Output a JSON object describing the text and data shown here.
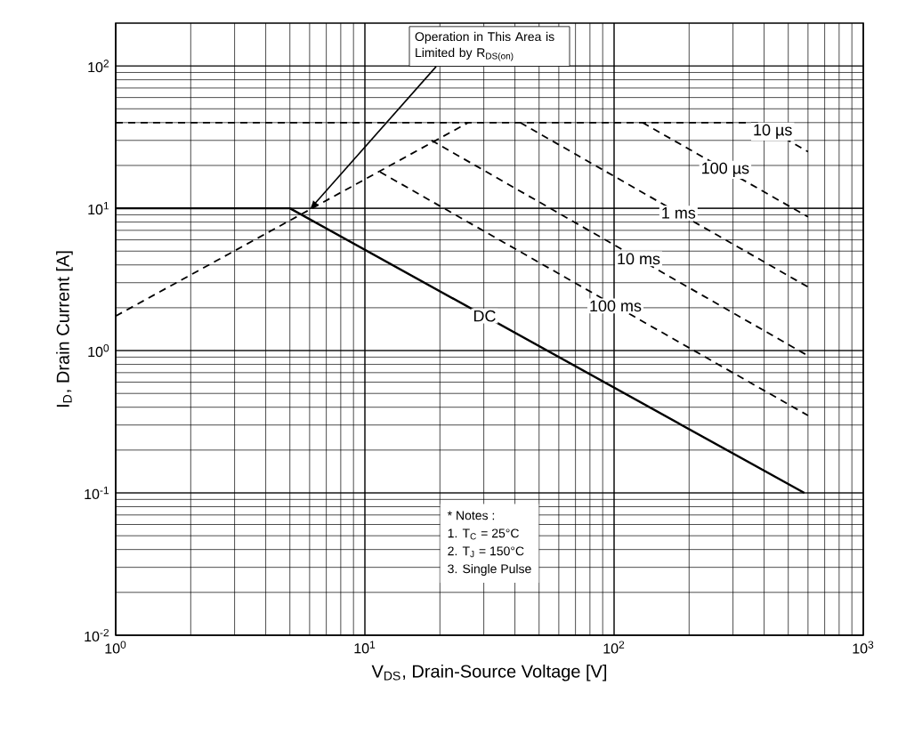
{
  "chart_data": {
    "type": "line",
    "xlabel": "V$_{DS}$, Drain-Source Voltage [V]",
    "ylabel": "I$_{D}$, Drain Current [A]",
    "log": "xy",
    "grid": true,
    "xlim": [
      1,
      1000
    ],
    "ylim": [
      0.01,
      200
    ],
    "xticks": [
      {
        "value": 1,
        "label": "10$^{0}$"
      },
      {
        "value": 10,
        "label": "10$^{1}$"
      },
      {
        "value": 100,
        "label": "10$^{2}$"
      },
      {
        "value": 1000,
        "label": "10$^{3}$"
      }
    ],
    "yticks": [
      {
        "value": 0.01,
        "label": "10$^{-2}$"
      },
      {
        "value": 0.1,
        "label": "10$^{-1}$"
      },
      {
        "value": 1,
        "label": "10$^{0}$"
      },
      {
        "value": 10,
        "label": "10$^{1}$"
      },
      {
        "value": 100,
        "label": "10$^{2}$"
      }
    ],
    "series": [
      {
        "color": "#000000",
        "line_style": "dashed",
        "x": [
          1,
          26
        ],
        "values": [
          1.75,
          40
        ]
      },
      {
        "name": "10 µs",
        "color": "#000000",
        "line_style": "dashed",
        "x": [
          1,
          375,
          600
        ],
        "values": [
          40,
          40,
          25
        ]
      },
      {
        "name": "100 µs",
        "color": "#000000",
        "line_style": "dashed",
        "x": [
          130,
          600
        ],
        "values": [
          40,
          8.7
        ]
      },
      {
        "name": "1 ms",
        "color": "#000000",
        "line_style": "dashed",
        "x": [
          42,
          600
        ],
        "values": [
          40,
          2.8
        ]
      },
      {
        "name": "10 ms",
        "color": "#000000",
        "line_style": "dashed",
        "x": [
          18.5,
          600
        ],
        "values": [
          30,
          0.92
        ]
      },
      {
        "name": "100 ms",
        "color": "#000000",
        "line_style": "dashed",
        "x": [
          11.5,
          600
        ],
        "values": [
          18,
          0.35
        ]
      },
      {
        "name": "DC",
        "color": "#000000",
        "line_style": "solid",
        "x": [
          1,
          5,
          580
        ],
        "values": [
          10,
          10,
          0.1
        ]
      }
    ],
    "annotations": [
      {
        "text": "Operation in This Area is Limited by R$_{DS(on)}$",
        "x": 6,
        "y": 9.8
      },
      "* Notes :",
      "1. T$_{C}$ = 25°C",
      "2. T$_{J}$ = 150°C",
      "3. Single Pulse"
    ]
  }
}
